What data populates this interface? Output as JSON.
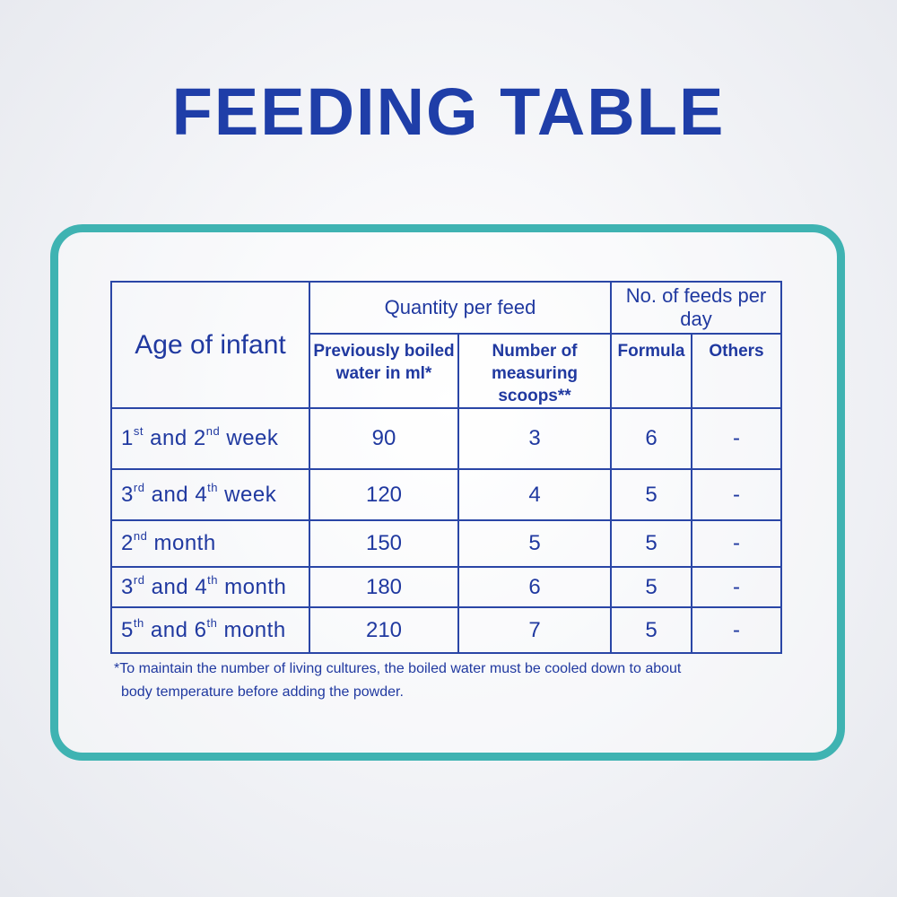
{
  "title": "FEEDING TABLE",
  "table": {
    "age_header": "Age of infant",
    "quantity_header": "Quantity per feed",
    "feeds_header": "No. of feeds per day",
    "water_header_1": "Previously boiled",
    "water_header_2": "water in ml*",
    "scoops_header_1": "Number of",
    "scoops_header_2": "measuring scoops**",
    "formula_header": "Formula",
    "others_header": "Others",
    "rows": [
      {
        "n1": "1",
        "s1": "st",
        "mid": " and ",
        "n2": "2",
        "s2": "nd",
        "unit": " week",
        "water": "90",
        "scoops": "3",
        "formula": "6",
        "others": "-"
      },
      {
        "n1": "3",
        "s1": "rd",
        "mid": " and ",
        "n2": "4",
        "s2": "th",
        "unit": " week",
        "water": "120",
        "scoops": "4",
        "formula": "5",
        "others": "-"
      },
      {
        "n1": "2",
        "s1": "nd",
        "mid": "",
        "n2": "",
        "s2": "",
        "unit": " month",
        "water": "150",
        "scoops": "5",
        "formula": "5",
        "others": "-"
      },
      {
        "n1": "3",
        "s1": "rd",
        "mid": " and ",
        "n2": "4",
        "s2": "th",
        "unit": " month",
        "water": "180",
        "scoops": "6",
        "formula": "5",
        "others": "-"
      },
      {
        "n1": "5",
        "s1": "th",
        "mid": " and ",
        "n2": "6",
        "s2": "th",
        "unit": " month",
        "water": "210",
        "scoops": "7",
        "formula": "5",
        "others": "-"
      }
    ]
  },
  "footnote": {
    "line1": "*To maintain the number of living cultures, the boiled water must be cooled down to about",
    "line2": "body temperature  before adding the powder."
  },
  "colors": {
    "title": "#1f3ea8",
    "frame": "#3fb3b2",
    "text": "#2039a0"
  }
}
